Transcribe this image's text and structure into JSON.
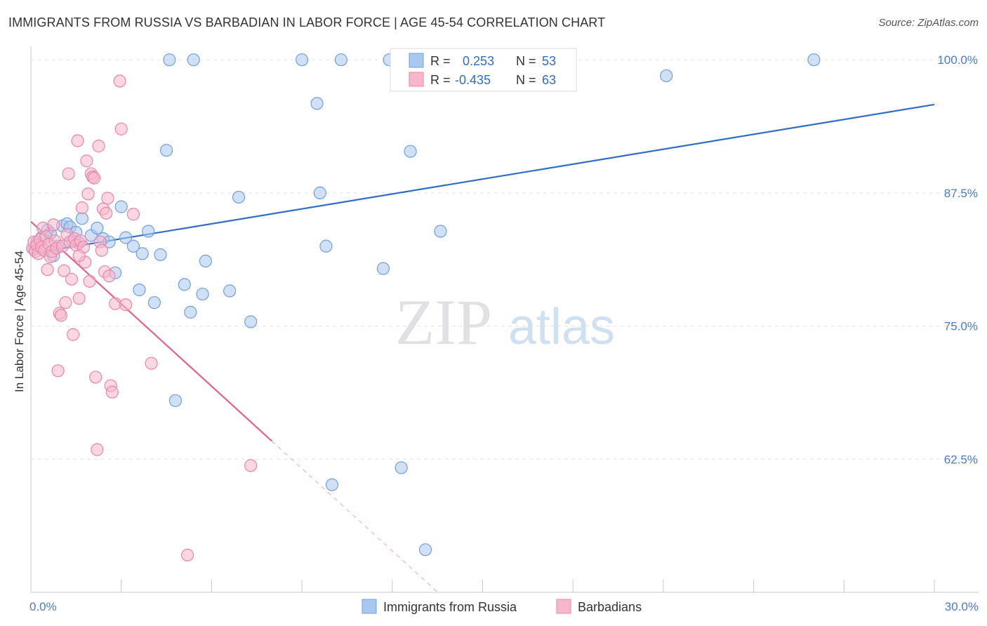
{
  "header": {
    "title": "IMMIGRANTS FROM RUSSIA VS BARBADIAN IN LABOR FORCE | AGE 45-54 CORRELATION CHART",
    "source": "Source: ZipAtlas.com"
  },
  "watermark": {
    "zip": "ZIP",
    "atlas": "atlas"
  },
  "legend": {
    "r_label": "R =",
    "n_label": "N =",
    "rows": [
      {
        "r": "0.253",
        "n": "53",
        "color": "#a9c8ef"
      },
      {
        "r": "-0.435",
        "n": "63",
        "color": "#f7b6cb"
      }
    ]
  },
  "bottom_legend": [
    {
      "label": "Immigrants from Russia",
      "color": "#a9c8ef"
    },
    {
      "label": "Barbadians",
      "color": "#f7b6cb"
    }
  ],
  "chart_data": {
    "type": "scatter",
    "title": "IMMIGRANTS FROM RUSSIA VS BARBADIAN IN LABOR FORCE | AGE 45-54 CORRELATION CHART",
    "ylabel": "In Labor Force | Age 45-54",
    "xlabel": "",
    "xlim": [
      0,
      30
    ],
    "ylim": [
      50,
      101
    ],
    "x_tick_labels": [
      {
        "value": 0,
        "label": "0.0%"
      },
      {
        "value": 30,
        "label": "30.0%"
      }
    ],
    "y_tick_labels": [
      {
        "value": 100,
        "label": "100.0%"
      },
      {
        "value": 87.5,
        "label": "87.5%"
      },
      {
        "value": 75,
        "label": "75.0%"
      },
      {
        "value": 62.5,
        "label": "62.5%"
      }
    ],
    "grid": true,
    "series": [
      {
        "name": "Immigrants from Russia",
        "color": "#6f9fe0",
        "fill": "#a9c8ef",
        "trend": {
          "x": [
            0,
            30
          ],
          "y": [
            81.8,
            95.8
          ],
          "color": "#2f6ec8"
        },
        "points": [
          [
            0.1,
            82.2
          ],
          [
            0.2,
            82.9
          ],
          [
            0.35,
            83.3
          ],
          [
            0.45,
            82.1
          ],
          [
            0.55,
            84.0
          ],
          [
            0.65,
            83.7
          ],
          [
            0.75,
            81.6
          ],
          [
            0.9,
            82.5
          ],
          [
            1.05,
            84.4
          ],
          [
            1.2,
            84.6
          ],
          [
            1.3,
            84.3
          ],
          [
            1.4,
            83.0
          ],
          [
            1.5,
            83.8
          ],
          [
            1.6,
            82.8
          ],
          [
            1.7,
            85.1
          ],
          [
            2.0,
            83.5
          ],
          [
            2.2,
            84.2
          ],
          [
            2.4,
            83.2
          ],
          [
            2.6,
            82.9
          ],
          [
            2.8,
            80.0
          ],
          [
            3.0,
            86.2
          ],
          [
            3.15,
            83.3
          ],
          [
            3.4,
            82.5
          ],
          [
            3.6,
            78.4
          ],
          [
            3.7,
            81.8
          ],
          [
            3.9,
            83.9
          ],
          [
            4.1,
            77.2
          ],
          [
            4.3,
            81.7
          ],
          [
            4.5,
            91.5
          ],
          [
            4.6,
            100.0
          ],
          [
            4.8,
            68.0
          ],
          [
            5.1,
            78.9
          ],
          [
            5.3,
            76.3
          ],
          [
            5.4,
            100.0
          ],
          [
            5.7,
            78.0
          ],
          [
            5.8,
            81.1
          ],
          [
            6.6,
            78.3
          ],
          [
            6.9,
            87.1
          ],
          [
            7.3,
            75.4
          ],
          [
            9.0,
            100.0
          ],
          [
            9.5,
            95.9
          ],
          [
            9.6,
            87.5
          ],
          [
            9.8,
            82.5
          ],
          [
            10.0,
            60.1
          ],
          [
            10.3,
            100.0
          ],
          [
            11.7,
            80.4
          ],
          [
            11.9,
            100.0
          ],
          [
            12.3,
            61.7
          ],
          [
            12.6,
            91.4
          ],
          [
            13.1,
            54.0
          ],
          [
            13.6,
            83.9
          ],
          [
            21.1,
            98.5
          ],
          [
            26.0,
            100.0
          ]
        ]
      },
      {
        "name": "Barbadians",
        "color": "#ea85a7",
        "fill": "#f7b6cb",
        "trend": {
          "x": [
            0,
            8
          ],
          "y": [
            84.8,
            64.2
          ],
          "color": "#e2628d",
          "dashed_extension": {
            "x": [
              8,
              30
            ],
            "y": [
              64.2,
              7.5
            ]
          }
        },
        "points": [
          [
            0.05,
            82.3
          ],
          [
            0.1,
            82.9
          ],
          [
            0.15,
            82.0
          ],
          [
            0.2,
            82.6
          ],
          [
            0.25,
            81.8
          ],
          [
            0.3,
            83.1
          ],
          [
            0.35,
            82.4
          ],
          [
            0.4,
            84.2
          ],
          [
            0.45,
            82.1
          ],
          [
            0.5,
            83.4
          ],
          [
            0.55,
            80.3
          ],
          [
            0.6,
            82.7
          ],
          [
            0.65,
            81.5
          ],
          [
            0.7,
            82.0
          ],
          [
            0.75,
            84.5
          ],
          [
            0.8,
            83.0
          ],
          [
            0.85,
            82.3
          ],
          [
            0.9,
            70.8
          ],
          [
            0.95,
            76.2
          ],
          [
            1.0,
            76.0
          ],
          [
            1.05,
            82.5
          ],
          [
            1.1,
            80.2
          ],
          [
            1.15,
            77.2
          ],
          [
            1.2,
            83.6
          ],
          [
            1.25,
            89.3
          ],
          [
            1.3,
            82.9
          ],
          [
            1.35,
            79.4
          ],
          [
            1.4,
            74.2
          ],
          [
            1.45,
            83.2
          ],
          [
            1.5,
            82.6
          ],
          [
            1.55,
            92.4
          ],
          [
            1.6,
            77.6
          ],
          [
            1.65,
            83.0
          ],
          [
            1.7,
            86.1
          ],
          [
            1.75,
            82.4
          ],
          [
            1.8,
            81.0
          ],
          [
            1.85,
            90.5
          ],
          [
            1.9,
            87.4
          ],
          [
            1.95,
            79.2
          ],
          [
            2.0,
            89.3
          ],
          [
            2.05,
            89.0
          ],
          [
            2.1,
            88.9
          ],
          [
            2.15,
            70.2
          ],
          [
            2.2,
            63.4
          ],
          [
            2.25,
            91.9
          ],
          [
            2.3,
            82.9
          ],
          [
            2.35,
            82.1
          ],
          [
            2.4,
            86.0
          ],
          [
            2.45,
            80.1
          ],
          [
            2.5,
            85.6
          ],
          [
            2.55,
            87.0
          ],
          [
            2.6,
            79.7
          ],
          [
            2.65,
            69.4
          ],
          [
            2.7,
            68.8
          ],
          [
            2.8,
            77.1
          ],
          [
            2.95,
            98.0
          ],
          [
            3.0,
            93.5
          ],
          [
            3.15,
            77.0
          ],
          [
            3.4,
            85.5
          ],
          [
            4.0,
            71.5
          ],
          [
            5.2,
            53.5
          ],
          [
            7.3,
            61.9
          ],
          [
            1.6,
            81.6
          ]
        ]
      }
    ]
  }
}
